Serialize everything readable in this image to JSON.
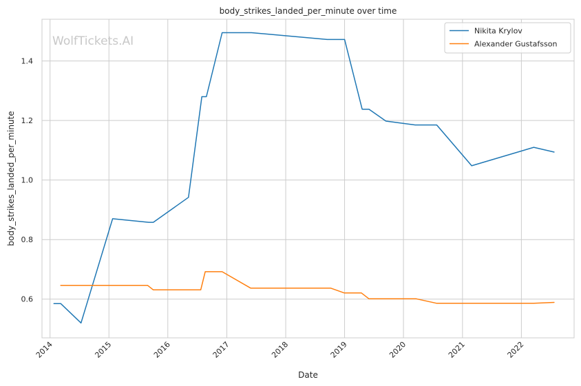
{
  "chart_data": {
    "type": "line",
    "title": "body_strikes_landed_per_minute over time",
    "xlabel": "Date",
    "ylabel": "body_strikes_landed_per_minute",
    "watermark": "WolfTickets.AI",
    "x_ticks": [
      "2014",
      "2015",
      "2016",
      "2017",
      "2018",
      "2019",
      "2020",
      "2021",
      "2022"
    ],
    "y_ticks": [
      "0.6",
      "0.8",
      "1.0",
      "1.2",
      "1.4"
    ],
    "xlim": [
      "2013-11-12",
      "2022-11-24"
    ],
    "ylim": [
      0.47,
      1.54
    ],
    "grid": true,
    "legend_position": "top-right",
    "series": [
      {
        "name": "Nikita Krylov",
        "color": "#1f77b4",
        "points": [
          [
            "2014-01-25",
            0.585
          ],
          [
            "2014-03-08",
            0.585
          ],
          [
            "2014-07-12",
            0.52
          ],
          [
            "2015-01-24",
            0.87
          ],
          [
            "2015-09-05",
            0.858
          ],
          [
            "2015-10-03",
            0.858
          ],
          [
            "2016-05-08",
            0.942
          ],
          [
            "2016-07-30",
            1.28
          ],
          [
            "2016-08-27",
            1.28
          ],
          [
            "2016-12-03",
            1.495
          ],
          [
            "2017-06-03",
            1.495
          ],
          [
            "2018-09-15",
            1.472
          ],
          [
            "2019-01-01",
            1.472
          ],
          [
            "2019-04-20",
            1.238
          ],
          [
            "2019-06-01",
            1.238
          ],
          [
            "2019-09-14",
            1.198
          ],
          [
            "2020-03-14",
            1.185
          ],
          [
            "2020-07-25",
            1.185
          ],
          [
            "2021-02-27",
            1.048
          ],
          [
            "2022-03-19",
            1.11
          ],
          [
            "2022-07-23",
            1.094
          ]
        ]
      },
      {
        "name": "Alexander Gustafsson",
        "color": "#ff7f0e",
        "points": [
          [
            "2014-03-08",
            0.646
          ],
          [
            "2015-08-29",
            0.646
          ],
          [
            "2015-10-03",
            0.631
          ],
          [
            "2016-07-23",
            0.631
          ],
          [
            "2016-08-20",
            0.692
          ],
          [
            "2016-12-03",
            0.692
          ],
          [
            "2017-05-28",
            0.637
          ],
          [
            "2018-10-06",
            0.637
          ],
          [
            "2018-12-29",
            0.621
          ],
          [
            "2019-04-15",
            0.621
          ],
          [
            "2019-06-01",
            0.601
          ],
          [
            "2020-03-21",
            0.601
          ],
          [
            "2020-07-25",
            0.586
          ],
          [
            "2022-03-19",
            0.586
          ],
          [
            "2022-07-23",
            0.589
          ]
        ]
      }
    ]
  }
}
